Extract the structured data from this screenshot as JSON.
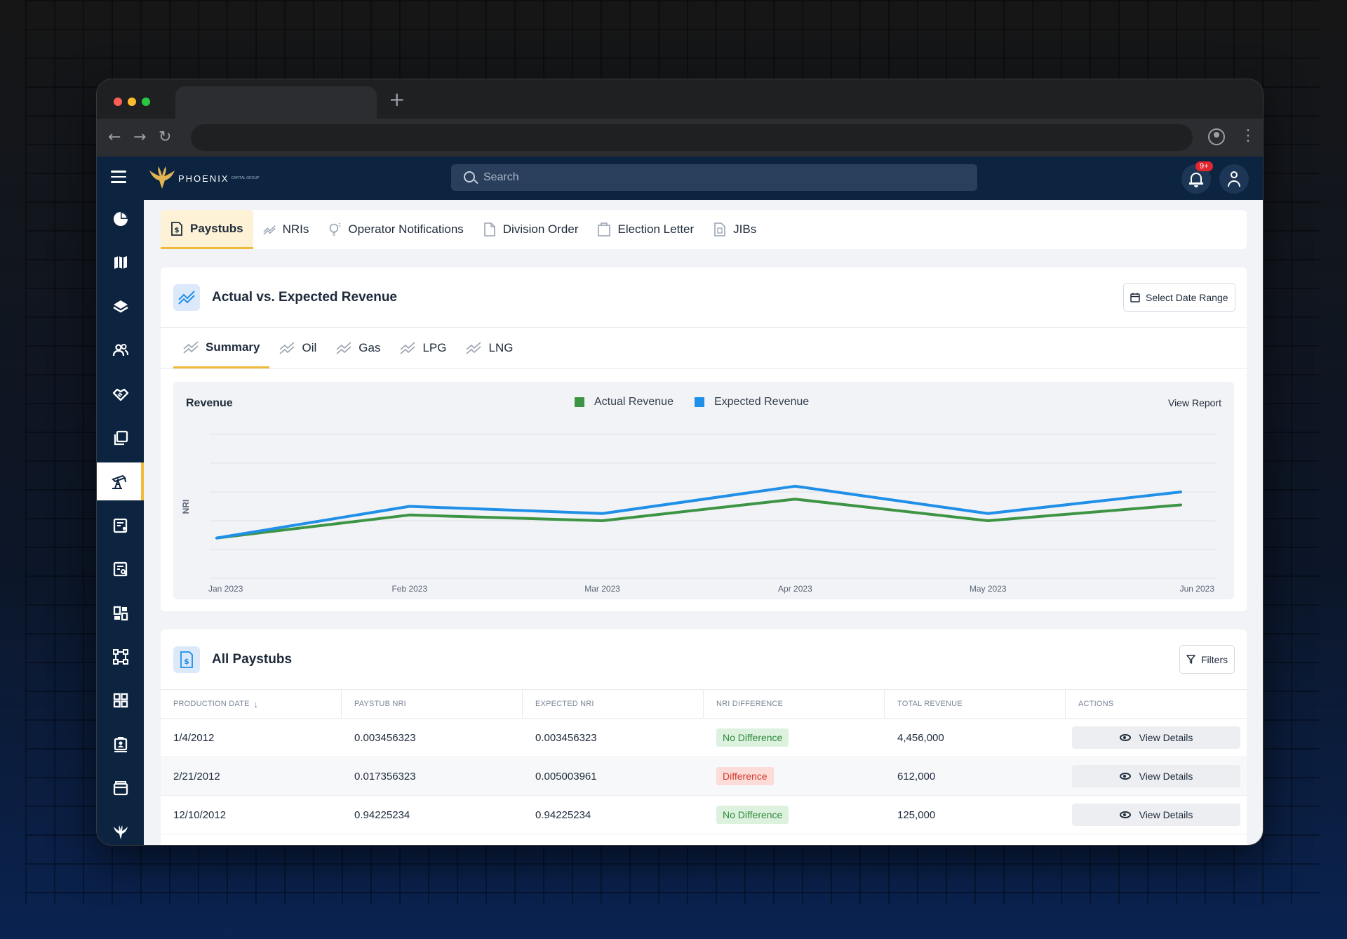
{
  "app": {
    "logo_text": "PHOENIX",
    "logo_sub": "CAPITAL GROUP"
  },
  "header": {
    "search_placeholder": "Search",
    "notification_badge": "9+"
  },
  "main_tabs": [
    {
      "label": "Paystubs",
      "icon": "dollar-doc-icon",
      "active": true
    },
    {
      "label": "NRIs",
      "icon": "trend-icon"
    },
    {
      "label": "Operator Notifications",
      "icon": "bulb-icon"
    },
    {
      "label": "Division Order",
      "icon": "document-icon"
    },
    {
      "label": "Election Letter",
      "icon": "clipboard-icon"
    },
    {
      "label": "JIBs",
      "icon": "file-icon"
    }
  ],
  "revenue": {
    "title": "Actual vs. Expected Revenue",
    "date_range_button": "Select Date Range",
    "sub_tabs": [
      {
        "label": "Summary",
        "active": true
      },
      {
        "label": "Oil"
      },
      {
        "label": "Gas"
      },
      {
        "label": "LPG"
      },
      {
        "label": "LNG"
      }
    ],
    "view_report": "View Report"
  },
  "chart_data": {
    "type": "line",
    "title": "Revenue",
    "xlabel": "",
    "ylabel": "NRI",
    "x": [
      "Jan 2023",
      "Feb 2023",
      "Mar 2023",
      "Apr 2023",
      "May 2023",
      "Jun 2023"
    ],
    "series": [
      {
        "name": "Actual Revenue",
        "color": "#3d9444",
        "values": [
          1.4,
          2.2,
          2.0,
          2.75,
          2.0,
          2.55
        ]
      },
      {
        "name": "Expected Revenue",
        "color": "#1f8fe8",
        "values": [
          1.4,
          2.5,
          2.25,
          3.2,
          2.25,
          3.0
        ]
      }
    ],
    "ylim": [
      0,
      5
    ],
    "grid": true,
    "legend": "top-center"
  },
  "paystubs": {
    "title": "All Paystubs",
    "filters_button": "Filters",
    "columns": [
      "Production Date",
      "Paystub NRI",
      "Expected NRI",
      "NRI Difference",
      "Total Revenue",
      "Actions"
    ],
    "rows": [
      {
        "date": "1/4/2012",
        "paystub_nri": "0.003456323",
        "expected_nri": "0.003456323",
        "difference": "No Difference",
        "status": "ok",
        "revenue": "4,456,000",
        "action": "View Details"
      },
      {
        "date": "2/21/2012",
        "paystub_nri": "0.017356323",
        "expected_nri": "0.005003961",
        "difference": "Difference",
        "status": "diff",
        "revenue": "612,000",
        "action": "View Details"
      },
      {
        "date": "12/10/2012",
        "paystub_nri": "0.94225234",
        "expected_nri": "0.94225234",
        "difference": "No Difference",
        "status": "ok",
        "revenue": "125,000",
        "action": "View Details"
      }
    ]
  },
  "sidebar": {
    "items": [
      {
        "icon": "pie-chart-icon"
      },
      {
        "icon": "map-icon"
      },
      {
        "icon": "layers-icon"
      },
      {
        "icon": "users-icon"
      },
      {
        "icon": "handshake-icon"
      },
      {
        "icon": "copy-icon"
      },
      {
        "icon": "oil-pump-icon",
        "active": true
      },
      {
        "icon": "report-user-icon"
      },
      {
        "icon": "report-search-icon"
      },
      {
        "icon": "dashboard-icon"
      },
      {
        "icon": "vector-icon"
      },
      {
        "icon": "grid-icon"
      },
      {
        "icon": "contact-card-icon"
      },
      {
        "icon": "wallet-icon"
      },
      {
        "icon": "phoenix-logo-icon"
      }
    ]
  }
}
